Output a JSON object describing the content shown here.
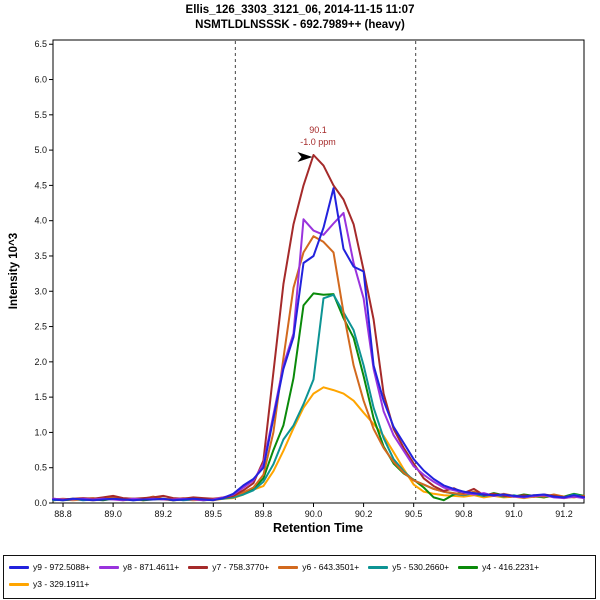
{
  "header": {
    "title_line1": "Ellis_126_3303_3121_06, 2014-11-15 11:07",
    "title_line2": "NSMTLDLNSSSK - 692.7989++ (heavy)"
  },
  "axes": {
    "x_label": "Retention Time",
    "y_label": "Intensity 10^3"
  },
  "annotation": {
    "rt_label": "90.1",
    "ppm_label": "-1.0 ppm",
    "rt": 90.0,
    "intensity": 4.93
  },
  "peak_boundaries": [
    89.61,
    90.51
  ],
  "chart_data": {
    "type": "line",
    "title": "Ellis_126_3303_3121_06, 2014-11-15 11:07",
    "subtitle": "NSMTLDLNSSSK - 692.7989++ (heavy)",
    "xlabel": "Retention Time",
    "ylabel": "Intensity 10^3",
    "xlim": [
      88.7,
      91.35
    ],
    "ylim": [
      0,
      6.56
    ],
    "x_start": 88.7,
    "x_step": 0.05,
    "x_ticks": [
      {
        "v": 88.75,
        "t": "88.8"
      },
      {
        "v": 89.0,
        "t": "89.0"
      },
      {
        "v": 89.25,
        "t": "89.2"
      },
      {
        "v": 89.5,
        "t": "89.5"
      },
      {
        "v": 89.75,
        "t": "89.8"
      },
      {
        "v": 90.0,
        "t": "90.0"
      },
      {
        "v": 90.25,
        "t": "90.2"
      },
      {
        "v": 90.5,
        "t": "90.5"
      },
      {
        "v": 90.75,
        "t": "90.8"
      },
      {
        "v": 91.0,
        "t": "91.0"
      },
      {
        "v": 91.25,
        "t": "91.2"
      }
    ],
    "y_tick_step": 0.5,
    "y_tick_labels": [
      "0.0",
      "0.5",
      "1.0",
      "1.5",
      "2.0",
      "2.5",
      "3.0",
      "3.5",
      "4.0",
      "4.5",
      "5.0",
      "5.5",
      "6.0",
      "6.5"
    ],
    "grid": false,
    "legend_position": "bottom",
    "series": [
      {
        "name": "y9",
        "mz": "972.5088+",
        "label": "y9 - 972.5088+",
        "color": "#2222DD",
        "values": [
          0.05,
          0.04,
          0.06,
          0.05,
          0.04,
          0.05,
          0.06,
          0.05,
          0.04,
          0.05,
          0.05,
          0.06,
          0.04,
          0.05,
          0.06,
          0.05,
          0.04,
          0.07,
          0.13,
          0.25,
          0.34,
          0.5,
          1.2,
          1.9,
          2.35,
          3.4,
          3.5,
          3.9,
          4.46,
          3.6,
          3.35,
          3.28,
          1.95,
          1.45,
          1.08,
          0.85,
          0.62,
          0.46,
          0.34,
          0.25,
          0.2,
          0.16,
          0.14,
          0.12,
          0.11,
          0.12,
          0.1,
          0.09,
          0.11,
          0.12,
          0.09,
          0.08,
          0.11,
          0.08
        ]
      },
      {
        "name": "y8",
        "mz": "871.4611+",
        "label": "y8 - 871.4611+",
        "color": "#9933DD",
        "values": [
          0.06,
          0.05,
          0.05,
          0.06,
          0.05,
          0.06,
          0.05,
          0.04,
          0.06,
          0.05,
          0.06,
          0.05,
          0.05,
          0.06,
          0.05,
          0.04,
          0.05,
          0.08,
          0.12,
          0.22,
          0.32,
          0.55,
          1.25,
          1.95,
          2.4,
          4.02,
          3.86,
          3.8,
          3.96,
          4.11,
          3.4,
          2.9,
          1.9,
          1.3,
          0.96,
          0.74,
          0.52,
          0.4,
          0.3,
          0.22,
          0.18,
          0.15,
          0.12,
          0.14,
          0.1,
          0.12,
          0.09,
          0.08,
          0.1,
          0.11,
          0.08,
          0.07,
          0.09,
          0.07
        ]
      },
      {
        "name": "y7",
        "mz": "758.3770+",
        "label": "y7 - 758.3770+",
        "color": "#A52A2A",
        "values": [
          0.06,
          0.05,
          0.06,
          0.07,
          0.06,
          0.08,
          0.1,
          0.07,
          0.06,
          0.07,
          0.08,
          0.1,
          0.07,
          0.06,
          0.08,
          0.07,
          0.06,
          0.07,
          0.1,
          0.18,
          0.28,
          0.6,
          1.85,
          3.1,
          3.95,
          4.5,
          4.93,
          4.78,
          4.5,
          4.3,
          3.95,
          3.3,
          2.6,
          1.55,
          1.05,
          0.78,
          0.56,
          0.35,
          0.24,
          0.17,
          0.21,
          0.14,
          0.2,
          0.11,
          0.13,
          0.1,
          0.09,
          0.11,
          0.09,
          0.12,
          0.1,
          0.08,
          0.1,
          0.09
        ]
      },
      {
        "name": "y6",
        "mz": "643.3501+",
        "label": "y6 - 643.3501+",
        "color": "#D2691E",
        "values": [
          0.05,
          0.06,
          0.05,
          0.06,
          0.07,
          0.05,
          0.08,
          0.06,
          0.05,
          0.06,
          0.09,
          0.06,
          0.05,
          0.07,
          0.06,
          0.05,
          0.06,
          0.08,
          0.1,
          0.15,
          0.22,
          0.4,
          1.0,
          2.05,
          3.05,
          3.55,
          3.78,
          3.7,
          3.55,
          2.7,
          1.95,
          1.45,
          1.05,
          0.78,
          0.58,
          0.43,
          0.32,
          0.26,
          0.2,
          0.16,
          0.14,
          0.12,
          0.16,
          0.12,
          0.1,
          0.13,
          0.1,
          0.09,
          0.11,
          0.09,
          0.12,
          0.09,
          0.08,
          0.1
        ]
      },
      {
        "name": "y5",
        "mz": "530.2660+",
        "label": "y5 - 530.2660+",
        "color": "#0D9494",
        "values": [
          0.04,
          0.05,
          0.06,
          0.04,
          0.05,
          0.06,
          0.05,
          0.06,
          0.04,
          0.05,
          0.06,
          0.05,
          0.06,
          0.04,
          0.05,
          0.06,
          0.05,
          0.06,
          0.08,
          0.12,
          0.18,
          0.3,
          0.55,
          0.9,
          1.1,
          1.4,
          1.75,
          2.9,
          2.95,
          2.7,
          2.45,
          1.95,
          1.35,
          0.92,
          0.62,
          0.45,
          0.32,
          0.26,
          0.2,
          0.16,
          0.13,
          0.11,
          0.14,
          0.1,
          0.12,
          0.09,
          0.11,
          0.08,
          0.1,
          0.09,
          0.11,
          0.08,
          0.12,
          0.09
        ]
      },
      {
        "name": "y4",
        "mz": "416.2231+",
        "label": "y4 - 416.2231+",
        "color": "#0A8A0A",
        "values": [
          0.05,
          0.04,
          0.05,
          0.06,
          0.05,
          0.04,
          0.06,
          0.05,
          0.06,
          0.04,
          0.05,
          0.06,
          0.04,
          0.05,
          0.06,
          0.04,
          0.05,
          0.07,
          0.09,
          0.14,
          0.2,
          0.35,
          0.75,
          1.1,
          1.77,
          2.8,
          2.97,
          2.95,
          2.96,
          2.62,
          2.34,
          1.8,
          1.2,
          0.8,
          0.56,
          0.42,
          0.33,
          0.22,
          0.08,
          0.04,
          0.12,
          0.16,
          0.13,
          0.1,
          0.14,
          0.11,
          0.09,
          0.12,
          0.1,
          0.08,
          0.11,
          0.09,
          0.13,
          0.1
        ]
      },
      {
        "name": "y3",
        "mz": "329.1911+",
        "label": "y3 - 329.1911+",
        "color": "#FFA500",
        "values": [
          0.04,
          0.05,
          0.04,
          0.05,
          0.04,
          0.05,
          0.06,
          0.04,
          0.05,
          0.04,
          0.06,
          0.05,
          0.04,
          0.05,
          0.04,
          0.05,
          0.04,
          0.06,
          0.07,
          0.12,
          0.19,
          0.24,
          0.45,
          0.74,
          1.06,
          1.35,
          1.55,
          1.64,
          1.6,
          1.55,
          1.45,
          1.28,
          1.12,
          0.95,
          0.72,
          0.48,
          0.26,
          0.16,
          0.13,
          0.11,
          0.1,
          0.09,
          0.11,
          0.08,
          0.1,
          0.08,
          0.09,
          0.07,
          0.09,
          0.08,
          0.1,
          0.07,
          0.09,
          0.08
        ]
      }
    ]
  }
}
